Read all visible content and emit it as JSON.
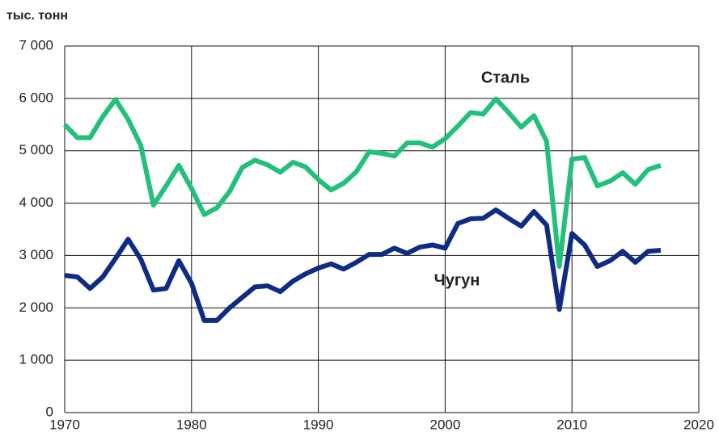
{
  "chart_data": {
    "type": "line",
    "ylabel": "тыс. тонн",
    "x": [
      1970,
      1971,
      1972,
      1973,
      1974,
      1975,
      1976,
      1977,
      1978,
      1979,
      1980,
      1981,
      1982,
      1983,
      1984,
      1985,
      1986,
      1987,
      1988,
      1989,
      1990,
      1991,
      1992,
      1993,
      1994,
      1995,
      1996,
      1997,
      1998,
      1999,
      2000,
      2001,
      2002,
      2003,
      2004,
      2005,
      2006,
      2007,
      2008,
      2009,
      2010,
      2011,
      2012,
      2013,
      2014,
      2015,
      2016,
      2017
    ],
    "series": [
      {
        "name": "Сталь",
        "color": "#22c07a",
        "values": [
          5500,
          5250,
          5250,
          5650,
          5980,
          5600,
          5100,
          3960,
          4330,
          4720,
          4280,
          3780,
          3910,
          4220,
          4680,
          4820,
          4730,
          4590,
          4780,
          4690,
          4450,
          4250,
          4380,
          4600,
          4980,
          4950,
          4900,
          5150,
          5150,
          5070,
          5230,
          5470,
          5730,
          5700,
          5990,
          5730,
          5450,
          5670,
          5180,
          2790,
          4840,
          4870,
          4330,
          4420,
          4580,
          4360,
          4640,
          4720
        ]
      },
      {
        "name": "Чугун",
        "color": "#0f2b82",
        "values": [
          2620,
          2590,
          2370,
          2590,
          2940,
          3310,
          2930,
          2340,
          2370,
          2900,
          2470,
          1760,
          1760,
          2000,
          2200,
          2400,
          2420,
          2310,
          2510,
          2650,
          2760,
          2840,
          2740,
          2870,
          3020,
          3020,
          3140,
          3040,
          3160,
          3200,
          3140,
          3610,
          3700,
          3710,
          3870,
          3710,
          3560,
          3840,
          3580,
          1970,
          3420,
          3200,
          2790,
          2900,
          3080,
          2870,
          3080,
          3100
        ]
      }
    ],
    "xlim": [
      1970,
      2020
    ],
    "xticks": [
      1970,
      1980,
      1990,
      2000,
      2010,
      2020
    ],
    "ylim": [
      0,
      7000
    ],
    "yticks": [
      0,
      {
        "value": 1000,
        "label": "1 000"
      },
      {
        "value": 2000,
        "label": "2 000"
      },
      {
        "value": 3000,
        "label": "3 000"
      },
      {
        "value": 4000,
        "label": "4 000"
      },
      {
        "value": 5000,
        "label": "5 000"
      },
      {
        "value": 6000,
        "label": "6 000"
      },
      {
        "value": 7000,
        "label": "7 000"
      }
    ],
    "grid": true
  }
}
